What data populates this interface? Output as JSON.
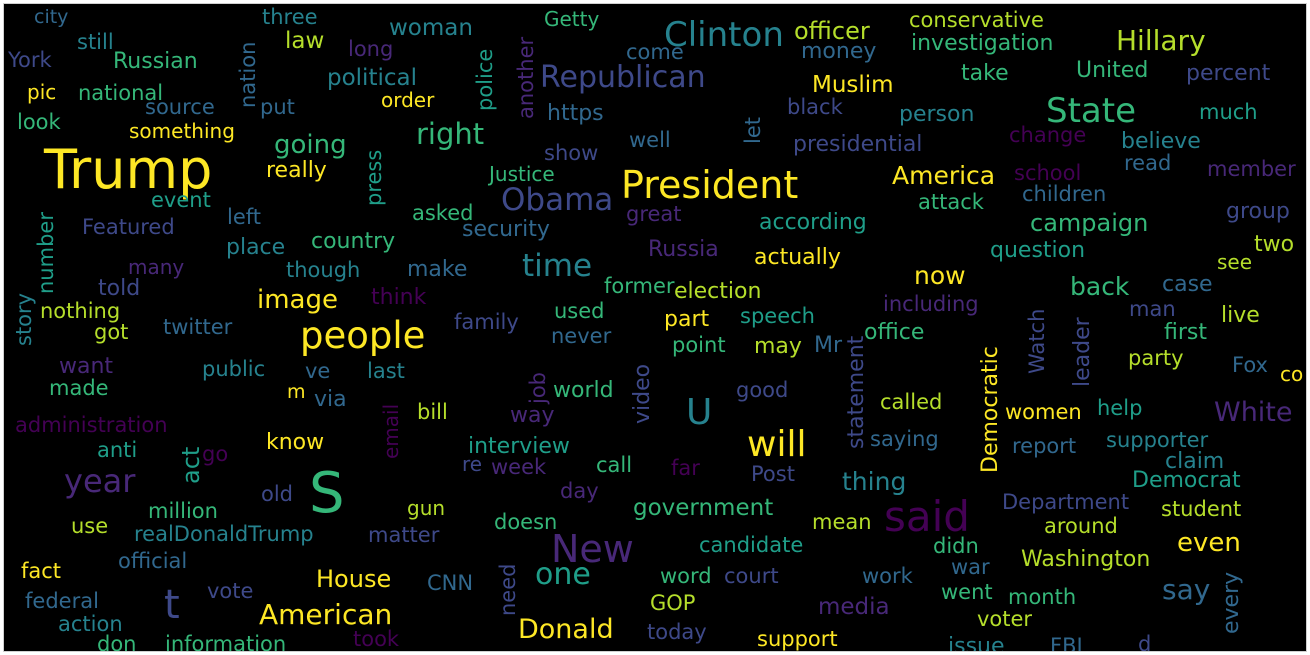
{
  "palette": {
    "yellow": "#fde725",
    "lime": "#b5de2b",
    "green": "#6ece58",
    "mint": "#35b779",
    "teal": "#1f9e89",
    "cyan": "#26828e",
    "steel": "#31688e",
    "indigo": "#3e4989",
    "violet": "#482878",
    "purple": "#440154"
  },
  "words": [
    {
      "t": "city",
      "c": "steel"
    },
    {
      "t": "three",
      "c": "cyan"
    },
    {
      "t": "woman",
      "c": "cyan"
    },
    {
      "t": "Getty",
      "c": "mint"
    },
    {
      "t": "officer",
      "c": "lime"
    },
    {
      "t": "conservative",
      "c": "lime"
    },
    {
      "t": "still",
      "c": "cyan"
    },
    {
      "t": "law",
      "c": "lime"
    },
    {
      "t": "long",
      "c": "violet"
    },
    {
      "t": "Clinton",
      "c": "cyan"
    },
    {
      "t": "money",
      "c": "steel"
    },
    {
      "t": "investigation",
      "c": "mint"
    },
    {
      "t": "Hillary",
      "c": "lime"
    },
    {
      "t": "York",
      "c": "indigo"
    },
    {
      "t": "Russian",
      "c": "mint"
    },
    {
      "t": "come",
      "c": "steel"
    },
    {
      "t": "Republican",
      "c": "indigo"
    },
    {
      "t": "take",
      "c": "mint"
    },
    {
      "t": "United",
      "c": "mint"
    },
    {
      "t": "percent",
      "c": "indigo"
    },
    {
      "t": "pic",
      "c": "yellow"
    },
    {
      "t": "national",
      "c": "mint"
    },
    {
      "t": "political",
      "c": "cyan"
    },
    {
      "t": "Muslim",
      "c": "yellow"
    },
    {
      "t": "order",
      "c": "yellow"
    },
    {
      "t": "source",
      "c": "steel"
    },
    {
      "t": "put",
      "c": "steel"
    },
    {
      "t": "https",
      "c": "steel"
    },
    {
      "t": "black",
      "c": "indigo"
    },
    {
      "t": "person",
      "c": "cyan"
    },
    {
      "t": "State",
      "c": "mint"
    },
    {
      "t": "much",
      "c": "teal"
    },
    {
      "t": "look",
      "c": "mint"
    },
    {
      "t": "something",
      "c": "yellow"
    },
    {
      "t": "right",
      "c": "mint"
    },
    {
      "t": "well",
      "c": "steel"
    },
    {
      "t": "presidential",
      "c": "indigo"
    },
    {
      "t": "change",
      "c": "purple"
    },
    {
      "t": "believe",
      "c": "cyan"
    },
    {
      "t": "Trump",
      "c": "yellow"
    },
    {
      "t": "going",
      "c": "mint"
    },
    {
      "t": "show",
      "c": "indigo"
    },
    {
      "t": "read",
      "c": "steel"
    },
    {
      "t": "member",
      "c": "violet"
    },
    {
      "t": "really",
      "c": "yellow"
    },
    {
      "t": "Justice",
      "c": "mint"
    },
    {
      "t": "President",
      "c": "yellow"
    },
    {
      "t": "America",
      "c": "yellow"
    },
    {
      "t": "school",
      "c": "purple"
    },
    {
      "t": "children",
      "c": "steel"
    },
    {
      "t": "event",
      "c": "teal"
    },
    {
      "t": "Obama",
      "c": "indigo"
    },
    {
      "t": "attack",
      "c": "mint"
    },
    {
      "t": "left",
      "c": "steel"
    },
    {
      "t": "asked",
      "c": "mint"
    },
    {
      "t": "great",
      "c": "violet"
    },
    {
      "t": "according",
      "c": "teal"
    },
    {
      "t": "group",
      "c": "indigo"
    },
    {
      "t": "Featured",
      "c": "indigo"
    },
    {
      "t": "security",
      "c": "steel"
    },
    {
      "t": "campaign",
      "c": "mint"
    },
    {
      "t": "place",
      "c": "cyan"
    },
    {
      "t": "country",
      "c": "mint"
    },
    {
      "t": "two",
      "c": "lime"
    },
    {
      "t": "Russia",
      "c": "violet"
    },
    {
      "t": "question",
      "c": "teal"
    },
    {
      "t": "actually",
      "c": "yellow"
    },
    {
      "t": "many",
      "c": "violet"
    },
    {
      "t": "though",
      "c": "cyan"
    },
    {
      "t": "make",
      "c": "steel"
    },
    {
      "t": "time",
      "c": "cyan"
    },
    {
      "t": "see",
      "c": "lime"
    },
    {
      "t": "now",
      "c": "yellow"
    },
    {
      "t": "told",
      "c": "indigo"
    },
    {
      "t": "former",
      "c": "mint"
    },
    {
      "t": "election",
      "c": "lime"
    },
    {
      "t": "back",
      "c": "mint"
    },
    {
      "t": "case",
      "c": "steel"
    },
    {
      "t": "image",
      "c": "yellow"
    },
    {
      "t": "think",
      "c": "purple"
    },
    {
      "t": "including",
      "c": "violet"
    },
    {
      "t": "nothing",
      "c": "lime"
    },
    {
      "t": "used",
      "c": "mint"
    },
    {
      "t": "man",
      "c": "indigo"
    },
    {
      "t": "live",
      "c": "lime"
    },
    {
      "t": "speech",
      "c": "teal"
    },
    {
      "t": "got",
      "c": "lime"
    },
    {
      "t": "twitter",
      "c": "steel"
    },
    {
      "t": "family",
      "c": "indigo"
    },
    {
      "t": "part",
      "c": "yellow"
    },
    {
      "t": "office",
      "c": "mint"
    },
    {
      "t": "first",
      "c": "mint"
    },
    {
      "t": "people",
      "c": "yellow"
    },
    {
      "t": "never",
      "c": "steel"
    },
    {
      "t": "point",
      "c": "mint"
    },
    {
      "t": "may",
      "c": "lime"
    },
    {
      "t": "Mr",
      "c": "steel"
    },
    {
      "t": "party",
      "c": "lime"
    },
    {
      "t": "want",
      "c": "violet"
    },
    {
      "t": "public",
      "c": "cyan"
    },
    {
      "t": "ve",
      "c": "steel"
    },
    {
      "t": "last",
      "c": "cyan"
    },
    {
      "t": "Fox",
      "c": "steel"
    },
    {
      "t": "co",
      "c": "yellow"
    },
    {
      "t": "made",
      "c": "mint"
    },
    {
      "t": "world",
      "c": "mint"
    },
    {
      "t": "m",
      "c": "yellow"
    },
    {
      "t": "via",
      "c": "steel"
    },
    {
      "t": "good",
      "c": "indigo"
    },
    {
      "t": "called",
      "c": "lime"
    },
    {
      "t": "bill",
      "c": "lime"
    },
    {
      "t": "U",
      "c": "cyan"
    },
    {
      "t": "way",
      "c": "violet"
    },
    {
      "t": "women",
      "c": "yellow"
    },
    {
      "t": "help",
      "c": "teal"
    },
    {
      "t": "White",
      "c": "violet"
    },
    {
      "t": "administration",
      "c": "purple"
    },
    {
      "t": "know",
      "c": "yellow"
    },
    {
      "t": "interview",
      "c": "teal"
    },
    {
      "t": "saying",
      "c": "steel"
    },
    {
      "t": "report",
      "c": "steel"
    },
    {
      "t": "supporter",
      "c": "cyan"
    },
    {
      "t": "anti",
      "c": "teal"
    },
    {
      "t": "go",
      "c": "purple"
    },
    {
      "t": "will",
      "c": "yellow"
    },
    {
      "t": "re",
      "c": "indigo"
    },
    {
      "t": "week",
      "c": "violet"
    },
    {
      "t": "call",
      "c": "mint"
    },
    {
      "t": "far",
      "c": "purple"
    },
    {
      "t": "Post",
      "c": "indigo"
    },
    {
      "t": "claim",
      "c": "cyan"
    },
    {
      "t": "year",
      "c": "violet"
    },
    {
      "t": "thing",
      "c": "cyan"
    },
    {
      "t": "Democrat",
      "c": "teal"
    },
    {
      "t": "S",
      "c": "mint"
    },
    {
      "t": "million",
      "c": "mint"
    },
    {
      "t": "old",
      "c": "indigo"
    },
    {
      "t": "day",
      "c": "violet"
    },
    {
      "t": "Department",
      "c": "indigo"
    },
    {
      "t": "student",
      "c": "lime"
    },
    {
      "t": "gun",
      "c": "lime"
    },
    {
      "t": "government",
      "c": "mint"
    },
    {
      "t": "said",
      "c": "purple"
    },
    {
      "t": "use",
      "c": "lime"
    },
    {
      "t": "realDonaldTrump",
      "c": "cyan"
    },
    {
      "t": "matter",
      "c": "indigo"
    },
    {
      "t": "doesn",
      "c": "mint"
    },
    {
      "t": "mean",
      "c": "lime"
    },
    {
      "t": "around",
      "c": "lime"
    },
    {
      "t": "even",
      "c": "yellow"
    },
    {
      "t": "New",
      "c": "violet"
    },
    {
      "t": "candidate",
      "c": "teal"
    },
    {
      "t": "didn",
      "c": "mint"
    },
    {
      "t": "official",
      "c": "steel"
    },
    {
      "t": "Washington",
      "c": "lime"
    },
    {
      "t": "fact",
      "c": "yellow"
    },
    {
      "t": "House",
      "c": "yellow"
    },
    {
      "t": "CNN",
      "c": "steel"
    },
    {
      "t": "one",
      "c": "teal"
    },
    {
      "t": "word",
      "c": "mint"
    },
    {
      "t": "court",
      "c": "indigo"
    },
    {
      "t": "work",
      "c": "steel"
    },
    {
      "t": "war",
      "c": "steel"
    },
    {
      "t": "say",
      "c": "steel"
    },
    {
      "t": "vote",
      "c": "indigo"
    },
    {
      "t": "went",
      "c": "mint"
    },
    {
      "t": "month",
      "c": "mint"
    },
    {
      "t": "federal",
      "c": "steel"
    },
    {
      "t": "t",
      "c": "indigo"
    },
    {
      "t": "American",
      "c": "yellow"
    },
    {
      "t": "GOP",
      "c": "lime"
    },
    {
      "t": "media",
      "c": "violet"
    },
    {
      "t": "voter",
      "c": "lime"
    },
    {
      "t": "action",
      "c": "cyan"
    },
    {
      "t": "Donald",
      "c": "yellow"
    },
    {
      "t": "today",
      "c": "indigo"
    },
    {
      "t": "don",
      "c": "mint"
    },
    {
      "t": "information",
      "c": "mint"
    },
    {
      "t": "took",
      "c": "purple"
    },
    {
      "t": "support",
      "c": "yellow"
    },
    {
      "t": "issue",
      "c": "cyan"
    },
    {
      "t": "FBI",
      "c": "steel"
    },
    {
      "t": "d",
      "c": "indigo"
    },
    {
      "t": "nation",
      "c": "steel"
    },
    {
      "t": "police",
      "c": "teal"
    },
    {
      "t": "another",
      "c": "violet"
    },
    {
      "t": "let",
      "c": "steel"
    },
    {
      "t": "press",
      "c": "teal"
    },
    {
      "t": "number",
      "c": "teal"
    },
    {
      "t": "story",
      "c": "cyan"
    },
    {
      "t": "job",
      "c": "violet"
    },
    {
      "t": "email",
      "c": "purple"
    },
    {
      "t": "act",
      "c": "teal"
    },
    {
      "t": "video",
      "c": "indigo"
    },
    {
      "t": "statement",
      "c": "indigo"
    },
    {
      "t": "Democratic",
      "c": "yellow"
    },
    {
      "t": "Watch",
      "c": "indigo"
    },
    {
      "t": "leader",
      "c": "indigo"
    },
    {
      "t": "need",
      "c": "indigo"
    },
    {
      "t": "every",
      "c": "steel"
    }
  ]
}
